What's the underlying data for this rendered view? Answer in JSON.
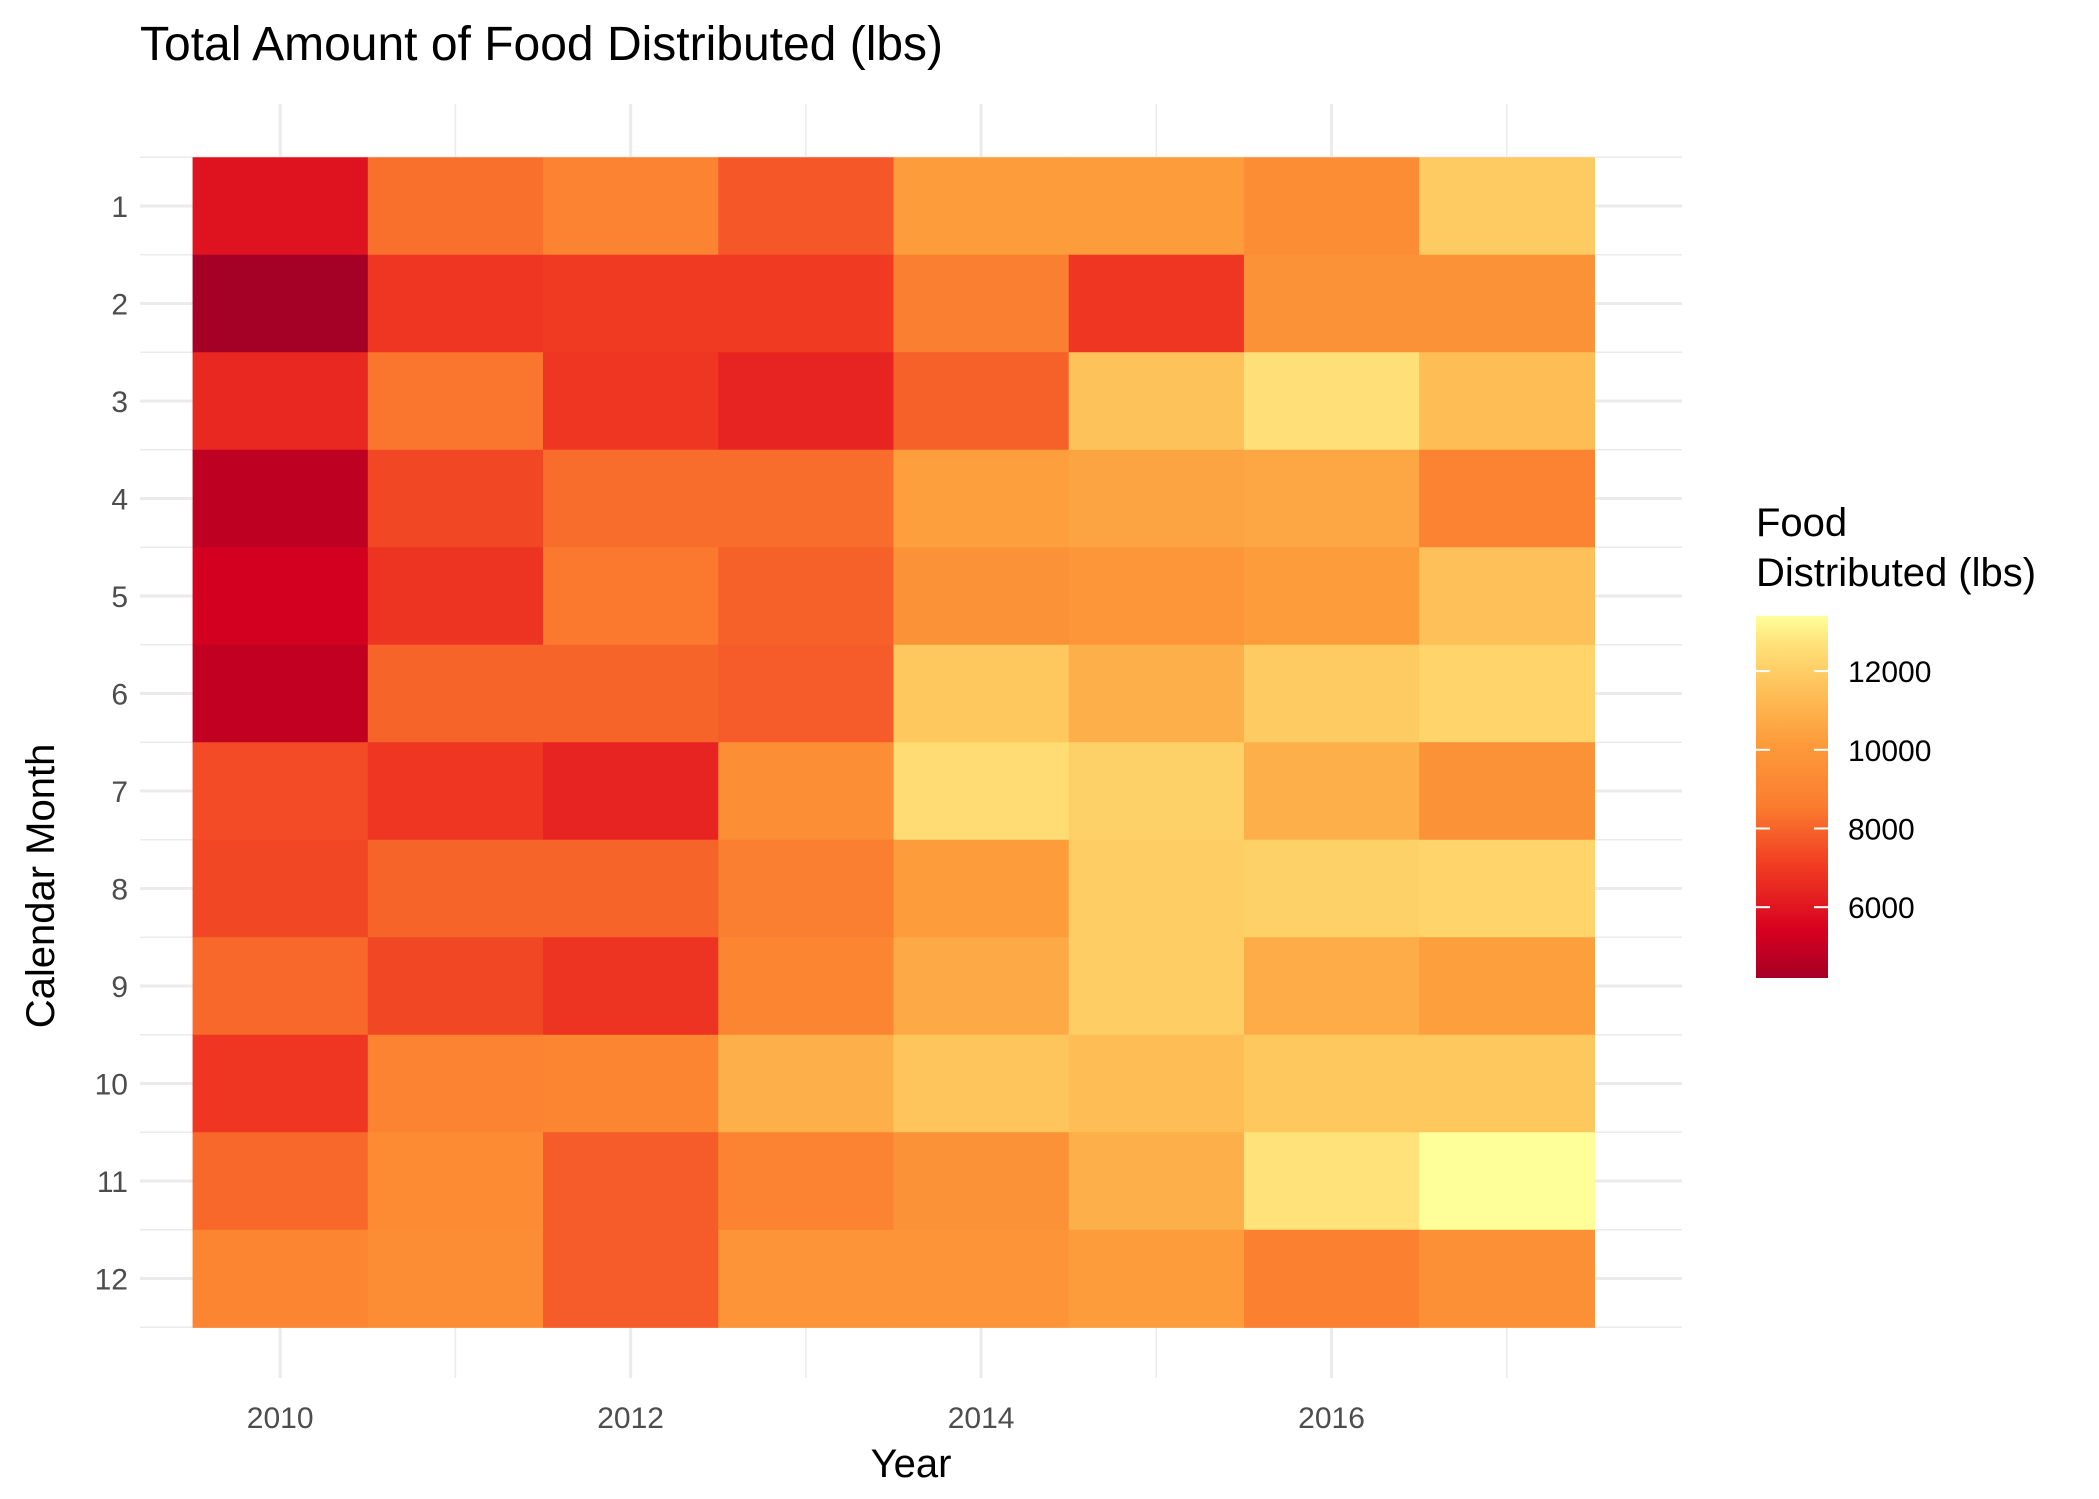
{
  "chart_data": {
    "type": "heatmap",
    "title": "Total Amount of Food Distributed (lbs)",
    "xlabel": "Year",
    "ylabel": "Calendar Month",
    "x": [
      2010,
      2011,
      2012,
      2013,
      2014,
      2015,
      2016,
      2017
    ],
    "y": [
      1,
      2,
      3,
      4,
      5,
      6,
      7,
      8,
      9,
      10,
      11,
      12
    ],
    "x_ticks": [
      "2010",
      "2012",
      "2014",
      "2016"
    ],
    "y_ticks": [
      "1",
      "2",
      "3",
      "4",
      "5",
      "6",
      "7",
      "8",
      "9",
      "10",
      "11",
      "12"
    ],
    "xlim": [
      2009.2,
      2018.0
    ],
    "values": [
      [
        5900,
        8300,
        8900,
        7700,
        10200,
        10200,
        9400,
        11900
      ],
      [
        4200,
        6900,
        7000,
        7000,
        8700,
        6900,
        9700,
        9700
      ],
      [
        6500,
        8400,
        6900,
        6400,
        7900,
        11600,
        12600,
        11400
      ],
      [
        4800,
        7300,
        8200,
        8200,
        10300,
        10500,
        10600,
        8900
      ],
      [
        5300,
        6800,
        8500,
        7900,
        9700,
        9900,
        10200,
        11500
      ],
      [
        4900,
        8000,
        8000,
        7800,
        11800,
        10900,
        11900,
        12200
      ],
      [
        7400,
        6900,
        6400,
        9500,
        12500,
        12100,
        10900,
        9700
      ],
      [
        7300,
        8000,
        8000,
        8700,
        10200,
        12000,
        12100,
        12200
      ],
      [
        8100,
        7300,
        6800,
        9000,
        10700,
        12000,
        10800,
        10300
      ],
      [
        6900,
        8900,
        9000,
        10900,
        11700,
        11400,
        11800,
        11800
      ],
      [
        8100,
        9300,
        7800,
        8900,
        9700,
        10900,
        12700,
        13400
      ],
      [
        9000,
        9400,
        7800,
        9800,
        9800,
        10200,
        8800,
        9600
      ]
    ],
    "color_scale": {
      "low": "#a50026",
      "high": "#ffff99",
      "domain": [
        4200,
        13400
      ],
      "stops": [
        {
          "v": 4200,
          "c": "#a50026"
        },
        {
          "v": 5400,
          "c": "#d7001f"
        },
        {
          "v": 7000,
          "c": "#f03a22"
        },
        {
          "v": 8600,
          "c": "#fb7d2f"
        },
        {
          "v": 10200,
          "c": "#fd9c3b"
        },
        {
          "v": 11700,
          "c": "#fec55c"
        },
        {
          "v": 12700,
          "c": "#ffe27a"
        },
        {
          "v": 13400,
          "c": "#ffff99"
        }
      ]
    },
    "legend": {
      "title_lines": [
        "Food",
        "Distributed (lbs)"
      ],
      "ticks": [
        {
          "value": 6000,
          "label": "6000"
        },
        {
          "value": 8000,
          "label": "8000"
        },
        {
          "value": 10000,
          "label": "10000"
        },
        {
          "value": 12000,
          "label": "12000"
        }
      ],
      "placement": "right"
    },
    "grid": true
  }
}
